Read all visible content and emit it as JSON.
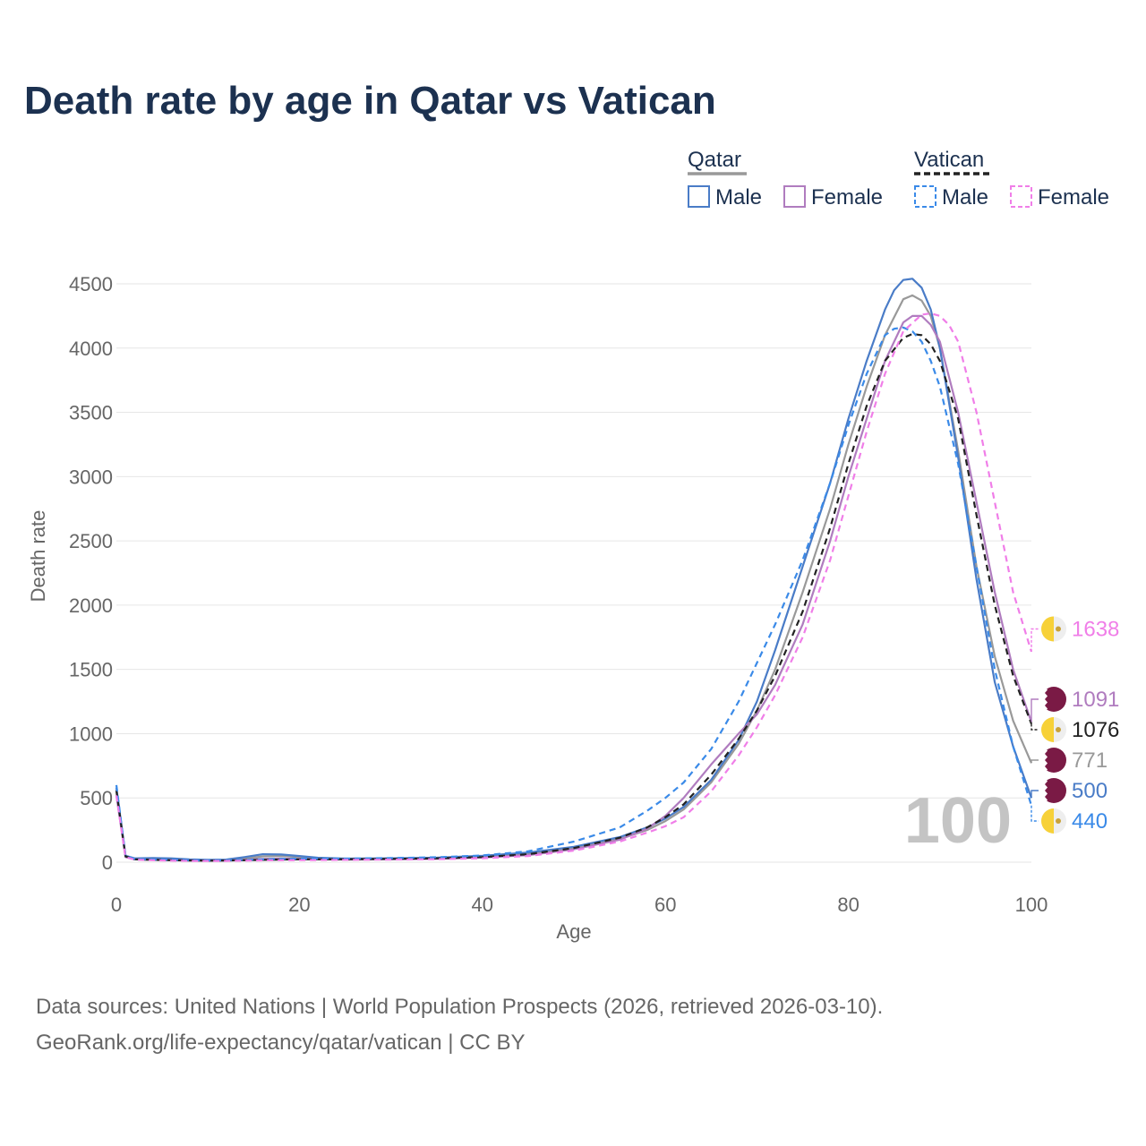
{
  "title": "Death rate by age in Qatar vs Vatican",
  "source_line1": "Data sources: United Nations | World Population Prospects (2026, retrieved 2026-03-10).",
  "source_line2": "GeoRank.org/life-expectancy/qatar/vatican | CC BY",
  "legend": {
    "groups": [
      {
        "name": "Qatar",
        "dash": false
      },
      {
        "name": "Vatican",
        "dash": true
      }
    ],
    "male_label": "Male",
    "female_label": "Female"
  },
  "chart_data": {
    "type": "line",
    "title": "Death rate by age in Qatar vs Vatican",
    "xlabel": "Age",
    "ylabel": "Death rate",
    "xlim": [
      0,
      100
    ],
    "ylim": [
      0,
      4500
    ],
    "xticks": [
      0,
      20,
      40,
      60,
      80,
      100
    ],
    "yticks": [
      0,
      500,
      1000,
      1500,
      2000,
      2500,
      3000,
      3500,
      4000,
      4500
    ],
    "grid": true,
    "watermark": "100",
    "series": [
      {
        "name": "Qatar Total",
        "color": "#999999",
        "dash": "",
        "width": 2.2,
        "end_label": "771",
        "flag": "qatar",
        "x": [
          0,
          1,
          2,
          4,
          6,
          8,
          10,
          12,
          14,
          16,
          18,
          20,
          22,
          25,
          30,
          35,
          40,
          45,
          50,
          55,
          58,
          60,
          62,
          65,
          68,
          70,
          72,
          75,
          78,
          80,
          82,
          84,
          86,
          87,
          88,
          89,
          90,
          92,
          94,
          96,
          98,
          100
        ],
        "y": [
          550,
          45,
          28,
          25,
          22,
          18,
          15,
          16,
          28,
          45,
          48,
          40,
          30,
          25,
          28,
          32,
          42,
          62,
          110,
          180,
          250,
          320,
          410,
          620,
          920,
          1180,
          1500,
          2100,
          2750,
          3250,
          3700,
          4100,
          4380,
          4410,
          4370,
          4250,
          4000,
          3200,
          2300,
          1600,
          1100,
          771
        ]
      },
      {
        "name": "Qatar Male",
        "color": "#4a7cc7",
        "dash": "",
        "width": 2.2,
        "end_label": "500",
        "flag": "qatar",
        "x": [
          0,
          1,
          2,
          4,
          6,
          8,
          10,
          12,
          14,
          16,
          18,
          20,
          22,
          25,
          30,
          35,
          40,
          45,
          50,
          55,
          58,
          60,
          62,
          65,
          68,
          70,
          72,
          75,
          78,
          80,
          82,
          84,
          85,
          86,
          87,
          88,
          89,
          90,
          92,
          94,
          96,
          98,
          100
        ],
        "y": [
          580,
          50,
          30,
          32,
          30,
          22,
          18,
          20,
          40,
          62,
          60,
          48,
          35,
          28,
          30,
          35,
          50,
          75,
          120,
          195,
          270,
          340,
          430,
          640,
          950,
          1250,
          1650,
          2300,
          2950,
          3450,
          3900,
          4300,
          4450,
          4530,
          4540,
          4470,
          4300,
          4000,
          3150,
          2200,
          1400,
          900,
          500
        ]
      },
      {
        "name": "Qatar Female",
        "color": "#b07cbf",
        "dash": "",
        "width": 2.2,
        "end_label": "1091",
        "flag": "qatar",
        "x": [
          0,
          1,
          2,
          4,
          6,
          8,
          10,
          12,
          14,
          16,
          18,
          20,
          22,
          25,
          30,
          35,
          40,
          45,
          50,
          55,
          58,
          60,
          62,
          65,
          68,
          70,
          72,
          75,
          78,
          80,
          82,
          84,
          86,
          87,
          88,
          89,
          90,
          92,
          94,
          96,
          98,
          100
        ],
        "y": [
          520,
          40,
          22,
          18,
          16,
          14,
          12,
          12,
          18,
          25,
          28,
          26,
          22,
          20,
          22,
          26,
          36,
          55,
          100,
          175,
          260,
          360,
          500,
          760,
          1000,
          1150,
          1380,
          1850,
          2500,
          3000,
          3450,
          3900,
          4200,
          4250,
          4250,
          4180,
          4050,
          3500,
          2800,
          2100,
          1500,
          1091
        ]
      },
      {
        "name": "Vatican Total",
        "color": "#222222",
        "dash": "7,5",
        "width": 2.2,
        "end_label": "1076",
        "flag": "vatican",
        "x": [
          0,
          1,
          2,
          4,
          6,
          8,
          10,
          12,
          14,
          16,
          18,
          20,
          22,
          25,
          30,
          35,
          40,
          45,
          50,
          55,
          58,
          60,
          62,
          65,
          68,
          70,
          72,
          75,
          78,
          80,
          82,
          84,
          86,
          87,
          88,
          89,
          90,
          92,
          94,
          96,
          98,
          100
        ],
        "y": [
          560,
          45,
          22,
          18,
          15,
          13,
          12,
          13,
          15,
          18,
          20,
          22,
          22,
          23,
          26,
          30,
          40,
          62,
          110,
          190,
          270,
          350,
          450,
          680,
          960,
          1180,
          1450,
          1950,
          2600,
          3100,
          3550,
          3900,
          4080,
          4110,
          4100,
          4030,
          3900,
          3450,
          2700,
          2000,
          1450,
          1076
        ]
      },
      {
        "name": "Vatican Male",
        "color": "#3a8ae8",
        "dash": "7,5",
        "width": 2.2,
        "end_label": "440",
        "flag": "vatican",
        "x": [
          0,
          1,
          2,
          4,
          6,
          8,
          10,
          12,
          14,
          16,
          18,
          20,
          22,
          25,
          30,
          35,
          40,
          45,
          50,
          55,
          58,
          60,
          62,
          65,
          68,
          70,
          72,
          75,
          78,
          80,
          82,
          84,
          85,
          86,
          87,
          88,
          89,
          90,
          92,
          94,
          96,
          98,
          100
        ],
        "y": [
          600,
          50,
          25,
          20,
          18,
          15,
          14,
          15,
          18,
          22,
          25,
          27,
          27,
          28,
          32,
          38,
          52,
          85,
          160,
          270,
          400,
          500,
          620,
          880,
          1250,
          1550,
          1850,
          2350,
          2950,
          3400,
          3800,
          4100,
          4150,
          4160,
          4130,
          4050,
          3900,
          3700,
          3100,
          2300,
          1500,
          900,
          440
        ]
      },
      {
        "name": "Vatican Female",
        "color": "#f07ee8",
        "dash": "7,5",
        "width": 2.2,
        "end_label": "1638",
        "flag": "vatican",
        "x": [
          0,
          1,
          2,
          4,
          6,
          8,
          10,
          12,
          14,
          16,
          18,
          20,
          22,
          25,
          30,
          35,
          40,
          45,
          50,
          55,
          58,
          60,
          62,
          65,
          68,
          70,
          72,
          75,
          78,
          80,
          82,
          84,
          86,
          88,
          89,
          90,
          91,
          92,
          94,
          96,
          98,
          100
        ],
        "y": [
          520,
          40,
          20,
          15,
          12,
          10,
          10,
          10,
          12,
          14,
          15,
          16,
          17,
          18,
          20,
          23,
          30,
          48,
          90,
          160,
          230,
          280,
          350,
          550,
          830,
          1050,
          1300,
          1750,
          2350,
          2850,
          3350,
          3800,
          4130,
          4260,
          4270,
          4250,
          4180,
          4050,
          3500,
          2800,
          2100,
          1638
        ]
      }
    ]
  }
}
